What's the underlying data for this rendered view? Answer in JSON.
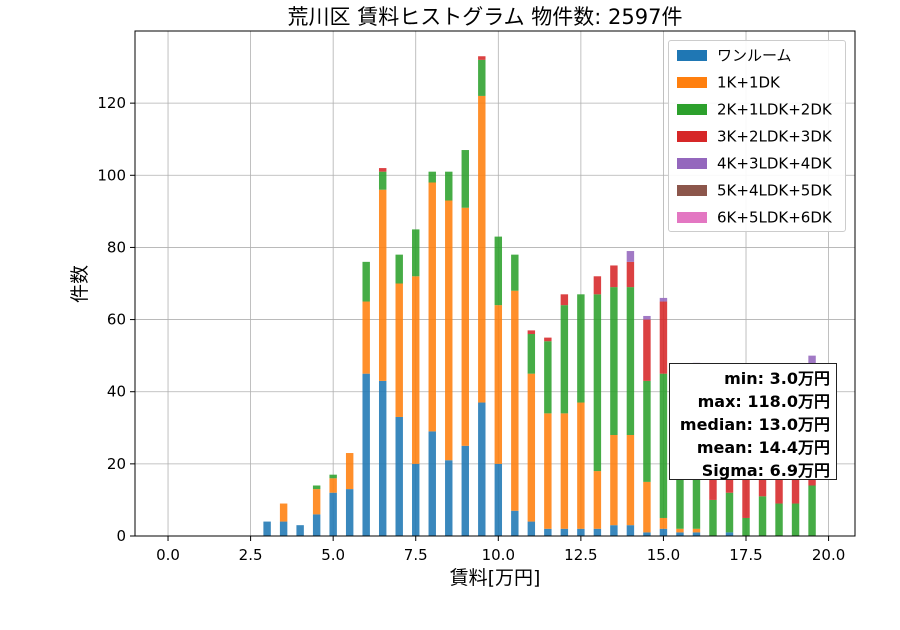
{
  "chart_data": {
    "type": "bar",
    "stacked": true,
    "title": "荒川区 賃料ヒストグラム 物件数: 2597件",
    "xlabel": "賃料[万円]",
    "ylabel": "件数",
    "xlim": [
      -1.0,
      20.8
    ],
    "ylim": [
      0,
      140
    ],
    "xticks": [
      0.0,
      2.5,
      5.0,
      7.5,
      10.0,
      12.5,
      15.0,
      17.5,
      20.0
    ],
    "xtick_labels": [
      "0.0",
      "2.5",
      "5.0",
      "7.5",
      "10.0",
      "12.5",
      "15.0",
      "17.5",
      "20.0"
    ],
    "yticks": [
      0,
      20,
      40,
      60,
      80,
      100,
      120
    ],
    "ytick_labels": [
      "0",
      "20",
      "40",
      "60",
      "80",
      "100",
      "120"
    ],
    "grid": true,
    "legend_position": "top-right",
    "bin_width": 0.25,
    "x": [
      3.0,
      3.25,
      3.5,
      3.75,
      4.0,
      4.25,
      4.5,
      4.75,
      5.0,
      5.25,
      5.5,
      5.75,
      6.0,
      6.25,
      6.5,
      6.75,
      7.0,
      7.25,
      7.5,
      7.75,
      8.0,
      8.25,
      8.5,
      8.75,
      9.0,
      9.25,
      9.5,
      9.75,
      10.0,
      10.25,
      10.5,
      10.75,
      11.0,
      11.25,
      11.5,
      11.75,
      12.0,
      12.25,
      12.5,
      12.75,
      13.0,
      13.25,
      13.5,
      13.75,
      14.0,
      14.25,
      14.5,
      14.75,
      15.0,
      15.25,
      15.5,
      15.75,
      16.0,
      16.25,
      16.5,
      16.75,
      17.0,
      17.25,
      17.5,
      17.75,
      18.0,
      18.25,
      18.5,
      18.75,
      19.0,
      19.25,
      19.5
    ],
    "series": [
      {
        "name": "ワンルーム",
        "color": "#1f77b4",
        "values": [
          4,
          0,
          4,
          0,
          3,
          0,
          6,
          0,
          12,
          0,
          13,
          0,
          45,
          0,
          43,
          0,
          33,
          0,
          20,
          0,
          29,
          0,
          21,
          0,
          25,
          0,
          37,
          0,
          20,
          0,
          7,
          0,
          4,
          0,
          2,
          0,
          2,
          0,
          2,
          0,
          2,
          0,
          3,
          0,
          3,
          0,
          1,
          0,
          2,
          0,
          1,
          0,
          1,
          0,
          0,
          0,
          1,
          0,
          0,
          0,
          0,
          0,
          0,
          0,
          0,
          0,
          0
        ]
      },
      {
        "name": "1K+1DK",
        "color": "#ff7f0e",
        "values": [
          0,
          0,
          5,
          0,
          0,
          0,
          7,
          0,
          4,
          0,
          10,
          0,
          20,
          0,
          53,
          0,
          37,
          0,
          52,
          0,
          69,
          0,
          72,
          0,
          66,
          0,
          85,
          0,
          44,
          0,
          61,
          0,
          41,
          0,
          32,
          0,
          32,
          0,
          35,
          0,
          16,
          0,
          25,
          0,
          25,
          0,
          14,
          0,
          3,
          0,
          1,
          0,
          1,
          0,
          0,
          0,
          0,
          0,
          0,
          0,
          0,
          0,
          0,
          0,
          0,
          0,
          0
        ]
      },
      {
        "name": "2K+1LDK+2DK",
        "color": "#2ca02c",
        "values": [
          0,
          0,
          0,
          0,
          0,
          0,
          1,
          0,
          1,
          0,
          0,
          0,
          11,
          0,
          5,
          0,
          8,
          0,
          13,
          0,
          3,
          0,
          8,
          0,
          16,
          0,
          10,
          0,
          19,
          0,
          10,
          0,
          11,
          0,
          20,
          0,
          30,
          0,
          30,
          0,
          49,
          0,
          41,
          0,
          41,
          0,
          28,
          0,
          40,
          0,
          33,
          0,
          29,
          0,
          10,
          0,
          11,
          0,
          5,
          0,
          11,
          0,
          9,
          0,
          9,
          0,
          14
        ]
      },
      {
        "name": "3K+2LDK+3DK",
        "color": "#d62728",
        "values": [
          0,
          0,
          0,
          0,
          0,
          0,
          0,
          0,
          0,
          0,
          0,
          0,
          0,
          0,
          1,
          0,
          0,
          0,
          0,
          0,
          0,
          0,
          0,
          0,
          0,
          0,
          1,
          0,
          0,
          0,
          0,
          0,
          1,
          0,
          1,
          0,
          3,
          0,
          0,
          0,
          5,
          0,
          6,
          0,
          7,
          0,
          17,
          0,
          20,
          0,
          7,
          0,
          16,
          0,
          13,
          0,
          13,
          0,
          12,
          0,
          17,
          0,
          19,
          0,
          22,
          0,
          33
        ]
      },
      {
        "name": "4K+3LDK+4DK",
        "color": "#9467bd",
        "values": [
          0,
          0,
          0,
          0,
          0,
          0,
          0,
          0,
          0,
          0,
          0,
          0,
          0,
          0,
          0,
          0,
          0,
          0,
          0,
          0,
          0,
          0,
          0,
          0,
          0,
          0,
          0,
          0,
          0,
          0,
          0,
          0,
          0,
          0,
          0,
          0,
          0,
          0,
          0,
          0,
          0,
          0,
          0,
          0,
          3,
          0,
          1,
          0,
          1,
          0,
          0,
          0,
          1,
          0,
          1,
          0,
          1,
          0,
          1,
          0,
          1,
          0,
          1,
          0,
          1,
          0,
          3
        ]
      },
      {
        "name": "5K+4LDK+5DK",
        "color": "#8c564b",
        "values": [
          0,
          0,
          0,
          0,
          0,
          0,
          0,
          0,
          0,
          0,
          0,
          0,
          0,
          0,
          0,
          0,
          0,
          0,
          0,
          0,
          0,
          0,
          0,
          0,
          0,
          0,
          0,
          0,
          0,
          0,
          0,
          0,
          0,
          0,
          0,
          0,
          0,
          0,
          0,
          0,
          0,
          0,
          0,
          0,
          0,
          0,
          0,
          0,
          0,
          0,
          0,
          0,
          0,
          0,
          0,
          0,
          0,
          0,
          0,
          0,
          0,
          0,
          0,
          0,
          0,
          0,
          0
        ]
      },
      {
        "name": "6K+5LDK+6DK",
        "color": "#e377c2",
        "values": [
          0,
          0,
          0,
          0,
          0,
          0,
          0,
          0,
          0,
          0,
          0,
          0,
          0,
          0,
          0,
          0,
          0,
          0,
          0,
          0,
          0,
          0,
          0,
          0,
          0,
          0,
          0,
          0,
          0,
          0,
          0,
          0,
          0,
          0,
          0,
          0,
          0,
          0,
          0,
          0,
          0,
          0,
          0,
          0,
          0,
          0,
          0,
          0,
          0,
          0,
          0,
          0,
          0,
          0,
          0,
          0,
          0,
          0,
          0,
          0,
          0,
          0,
          0,
          0,
          0,
          0,
          0
        ]
      }
    ],
    "stats_box": {
      "min": "min: 3.0万円",
      "max": "max: 118.0万円",
      "median": "median: 13.0万円",
      "mean": "mean: 14.4万円",
      "sigma": "Sigma: 6.9万円"
    }
  }
}
